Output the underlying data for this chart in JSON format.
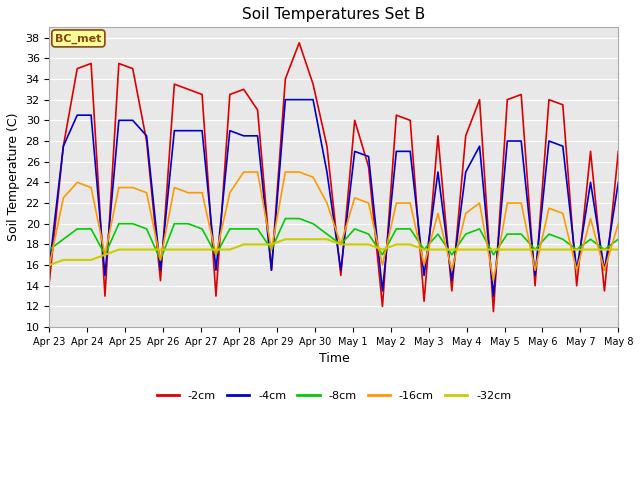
{
  "title": "Soil Temperatures Set B",
  "xlabel": "Time",
  "ylabel": "Soil Temperature (C)",
  "ylim": [
    10,
    39
  ],
  "xlim": [
    0,
    15
  ],
  "fig_bg": "#ffffff",
  "plot_bg_color": "#e8e8e8",
  "grid_color": "#ffffff",
  "label_text": "BC_met",
  "label_bg": "#ffff99",
  "label_border": "#8b4513",
  "tick_labels": [
    "Apr 23",
    "Apr 24",
    "Apr 25",
    "Apr 26",
    "Apr 27",
    "Apr 28",
    "Apr 29",
    "Apr 30",
    "May 1",
    "May 2",
    "May 3",
    "May 4",
    "May 5",
    "May 6",
    "May 7",
    "May 8"
  ],
  "series": {
    "-2cm": {
      "color": "#dd0000",
      "lw": 1.2
    },
    "-4cm": {
      "color": "#0000cc",
      "lw": 1.2
    },
    "-8cm": {
      "color": "#00cc00",
      "lw": 1.2
    },
    "-16cm": {
      "color": "#ff9900",
      "lw": 1.2
    },
    "-32cm": {
      "color": "#cccc00",
      "lw": 1.5
    }
  },
  "data_2cm": [
    14.5,
    27.5,
    35.0,
    35.5,
    13.0,
    35.5,
    35.0,
    28.0,
    14.5,
    33.5,
    33.0,
    32.5,
    13.0,
    32.5,
    33.0,
    31.0,
    15.5,
    34.0,
    37.5,
    33.5,
    27.5,
    15.0,
    30.0,
    25.5,
    12.0,
    30.5,
    30.0,
    12.5,
    28.5,
    13.5,
    28.5,
    32.0,
    11.5,
    32.0,
    32.5,
    14.0,
    32.0,
    31.5,
    14.0,
    27.0,
    13.5,
    27.0
  ],
  "data_4cm": [
    16.0,
    27.5,
    30.5,
    30.5,
    15.0,
    30.0,
    30.0,
    28.5,
    15.5,
    29.0,
    29.0,
    29.0,
    15.5,
    29.0,
    28.5,
    28.5,
    15.5,
    32.0,
    32.0,
    32.0,
    25.0,
    15.5,
    27.0,
    26.5,
    13.5,
    27.0,
    27.0,
    15.0,
    25.0,
    14.5,
    25.0,
    27.5,
    13.0,
    28.0,
    28.0,
    15.0,
    28.0,
    27.5,
    15.5,
    24.0,
    15.5,
    24.0
  ],
  "data_8cm": [
    17.5,
    18.5,
    19.5,
    19.5,
    17.0,
    20.0,
    20.0,
    19.5,
    16.5,
    20.0,
    20.0,
    19.5,
    17.0,
    19.5,
    19.5,
    19.5,
    17.5,
    20.5,
    20.5,
    20.0,
    19.0,
    18.0,
    19.5,
    19.0,
    17.0,
    19.5,
    19.5,
    17.5,
    19.0,
    17.0,
    19.0,
    19.5,
    17.0,
    19.0,
    19.0,
    17.5,
    19.0,
    18.5,
    17.5,
    18.5,
    17.5,
    18.5
  ],
  "data_16cm": [
    16.0,
    22.5,
    24.0,
    23.5,
    17.0,
    23.5,
    23.5,
    23.0,
    16.5,
    23.5,
    23.0,
    23.0,
    17.0,
    23.0,
    25.0,
    25.0,
    17.5,
    25.0,
    25.0,
    24.5,
    22.0,
    18.0,
    22.5,
    22.0,
    16.0,
    22.0,
    22.0,
    16.0,
    21.0,
    15.5,
    21.0,
    22.0,
    14.5,
    22.0,
    22.0,
    15.5,
    21.5,
    21.0,
    15.5,
    20.5,
    15.5,
    20.0
  ],
  "data_32cm": [
    16.0,
    16.5,
    16.5,
    16.5,
    17.0,
    17.5,
    17.5,
    17.5,
    17.5,
    17.5,
    17.5,
    17.5,
    17.5,
    17.5,
    18.0,
    18.0,
    18.0,
    18.5,
    18.5,
    18.5,
    18.5,
    18.0,
    18.0,
    18.0,
    17.5,
    18.0,
    18.0,
    17.5,
    17.5,
    17.5,
    17.5,
    17.5,
    17.5,
    17.5,
    17.5,
    17.5,
    17.5,
    17.5,
    17.5,
    17.5,
    17.5,
    17.5
  ]
}
